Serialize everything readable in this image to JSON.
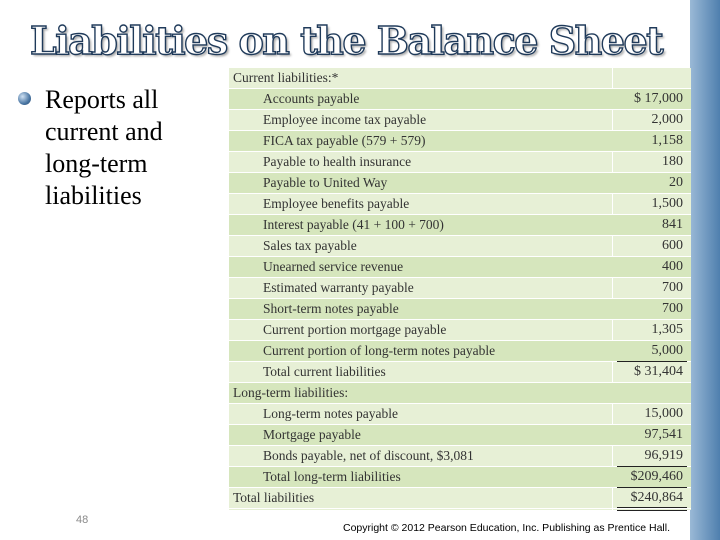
{
  "slide": {
    "title": "Liabilities on the Balance Sheet",
    "bullet": "Reports all current and long-term liabilities",
    "page_number": "48",
    "copyright": "Copyright © 2012 Pearson Education, Inc. Publishing as Prentice Hall."
  },
  "table": {
    "rows": [
      {
        "label": "Current liabilities:*",
        "amount": ""
      },
      {
        "label": "Accounts payable",
        "amount": "$ 17,000"
      },
      {
        "label": "Employee income tax payable",
        "amount": "2,000"
      },
      {
        "label": "FICA tax payable (579 + 579)",
        "amount": "1,158"
      },
      {
        "label": "Payable to health insurance",
        "amount": "180"
      },
      {
        "label": "Payable to United Way",
        "amount": "20"
      },
      {
        "label": "Employee benefits payable",
        "amount": "1,500"
      },
      {
        "label": "Interest payable (41 + 100 + 700)",
        "amount": "841"
      },
      {
        "label": "Sales tax payable",
        "amount": "600"
      },
      {
        "label": "Unearned service revenue",
        "amount": "400"
      },
      {
        "label": "Estimated warranty payable",
        "amount": "700"
      },
      {
        "label": "Short-term notes payable",
        "amount": "700"
      },
      {
        "label": "Current portion mortgage payable",
        "amount": "1,305"
      },
      {
        "label": "Current portion of long-term notes payable",
        "amount": "5,000"
      },
      {
        "label": "Total current liabilities",
        "amount": "$ 31,404"
      },
      {
        "label": "Long-term liabilities:",
        "amount": ""
      },
      {
        "label": "Long-term notes payable",
        "amount": "15,000"
      },
      {
        "label": "Mortgage payable",
        "amount": "97,541"
      },
      {
        "label": "Bonds payable, net of discount, $3,081",
        "amount": "96,919"
      },
      {
        "label": "Total long-term liabilities",
        "amount": "$209,460"
      },
      {
        "label": "Total liabilities",
        "amount": "$240,864"
      }
    ]
  }
}
